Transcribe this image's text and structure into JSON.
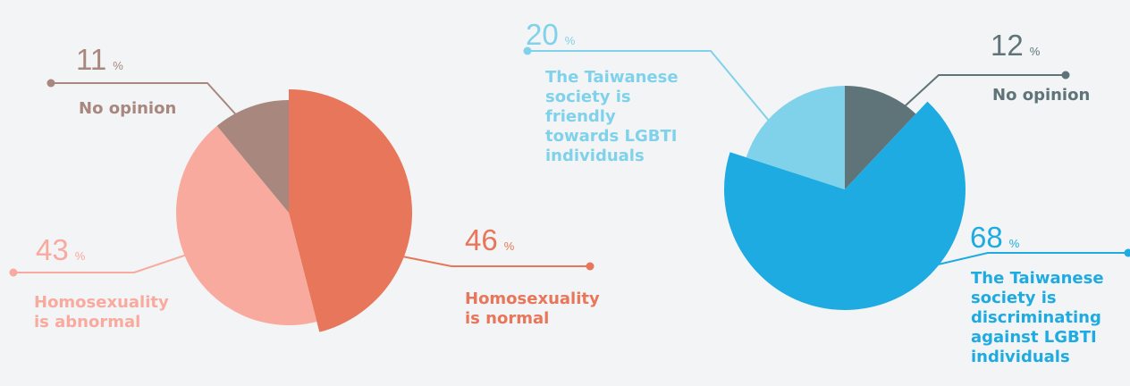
{
  "chart_data": [
    {
      "type": "pie",
      "unit": "%",
      "categories": [
        "Homosexuality\nis normal",
        "Homosexuality\nis abnormal",
        "No opinion"
      ],
      "values": [
        46,
        43,
        11
      ],
      "colors": [
        "#e8765a",
        "#f9aa9f",
        "#a8877e"
      ]
    },
    {
      "type": "pie",
      "unit": "%",
      "categories": [
        "No opinion",
        "The Taiwanese\nsociety is\ndiscriminating\nagainst LGBTI\nindividuals",
        "The Taiwanese\nsociety is\nfriendly\ntowards LGBTI\nindividuals"
      ],
      "values": [
        12,
        68,
        20
      ],
      "colors": [
        "#5f7478",
        "#1eabe2",
        "#80d1ea"
      ]
    }
  ]
}
